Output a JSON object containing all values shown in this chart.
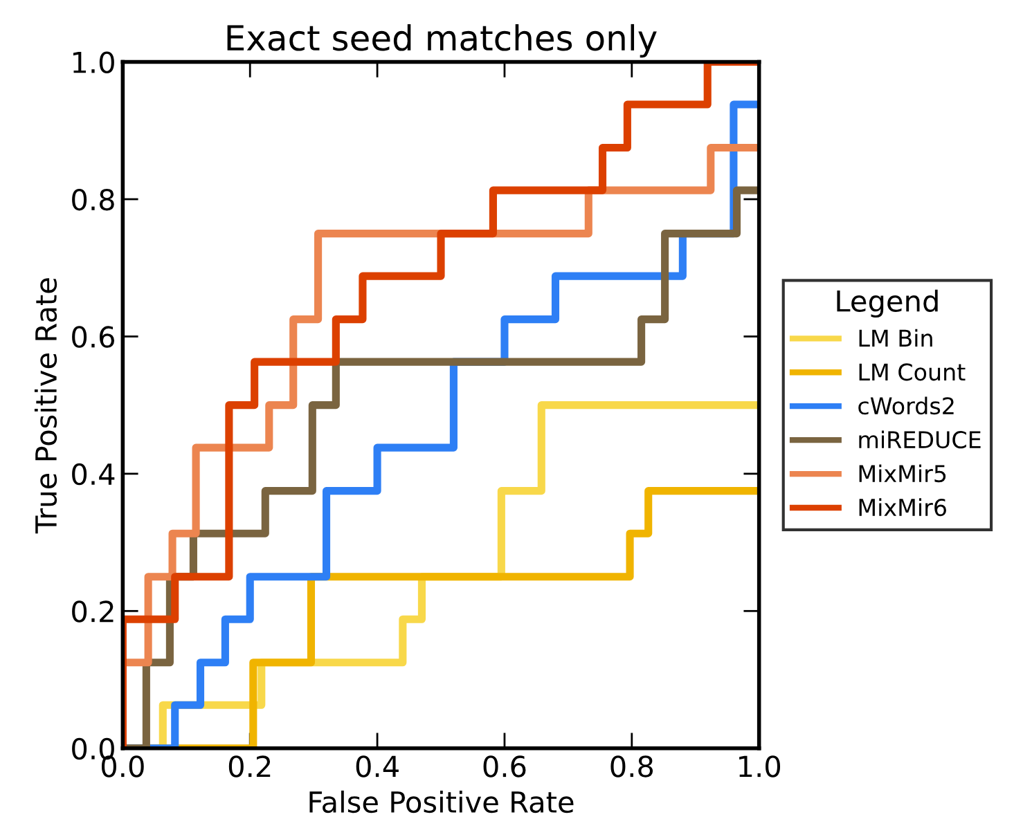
{
  "chart_data": {
    "type": "step",
    "title": "Exact seed matches only",
    "xlabel": "False Positive Rate",
    "ylabel": "True Positive Rate",
    "legend_title": "Legend",
    "legend": "right",
    "grid": false,
    "line_style": "solid",
    "marker": "none",
    "xlim": [
      0,
      1
    ],
    "ylim": [
      0,
      1
    ],
    "xticks": [
      {
        "value": 0,
        "label": "0.0"
      },
      {
        "value": 0.2,
        "label": "0.2"
      },
      {
        "value": 0.4,
        "label": "0.4"
      },
      {
        "value": 0.6,
        "label": "0.6"
      },
      {
        "value": 0.8,
        "label": "0.8"
      },
      {
        "value": 1,
        "label": "1.0"
      }
    ],
    "yticks": [
      {
        "value": 0,
        "label": "0.0"
      },
      {
        "value": 0.2,
        "label": "0.2"
      },
      {
        "value": 0.4,
        "label": "0.4"
      },
      {
        "value": 0.6,
        "label": "0.6"
      },
      {
        "value": 0.8,
        "label": "0.8"
      },
      {
        "value": 1,
        "label": "1.0"
      }
    ],
    "series": [
      {
        "name": "LM Bin",
        "color": "#f8d84a",
        "x": [
          0,
          0.063,
          0.218,
          0.44,
          0.47,
          0.595,
          0.658,
          1
        ],
        "values": [
          0,
          0.063,
          0.125,
          0.188,
          0.25,
          0.375,
          0.5,
          0.5
        ]
      },
      {
        "name": "LM Count",
        "color": "#f0b400",
        "x": [
          0,
          0.205,
          0.296,
          0.797,
          0.826,
          1
        ],
        "values": [
          0,
          0.125,
          0.25,
          0.313,
          0.375,
          0.375
        ]
      },
      {
        "name": "cWords2",
        "color": "#2e7ff5",
        "x": [
          0,
          0.082,
          0.122,
          0.161,
          0.2,
          0.32,
          0.4,
          0.52,
          0.6,
          0.68,
          0.88,
          0.96,
          1
        ],
        "values": [
          0,
          0.063,
          0.125,
          0.188,
          0.25,
          0.375,
          0.438,
          0.563,
          0.625,
          0.688,
          0.75,
          0.938,
          0.938
        ]
      },
      {
        "name": "miREDUCE",
        "color": "#7a6440",
        "x": [
          0,
          0.037,
          0.074,
          0.111,
          0.224,
          0.298,
          0.335,
          0.815,
          0.852,
          0.965,
          1
        ],
        "values": [
          0,
          0.125,
          0.25,
          0.313,
          0.375,
          0.5,
          0.563,
          0.625,
          0.75,
          0.813,
          0.813
        ]
      },
      {
        "name": "MixMir5",
        "color": "#ec8550",
        "x": [
          0,
          0,
          0.04,
          0.078,
          0.115,
          0.23,
          0.268,
          0.307,
          0.732,
          0.924,
          1
        ],
        "values": [
          0,
          0.125,
          0.25,
          0.313,
          0.438,
          0.5,
          0.625,
          0.75,
          0.813,
          0.875,
          0.875
        ]
      },
      {
        "name": "MixMir6",
        "color": "#dc4000",
        "x": [
          0,
          0,
          0.082,
          0.167,
          0.207,
          0.335,
          0.377,
          0.5,
          0.582,
          0.754,
          0.793,
          0.919,
          1
        ],
        "values": [
          0,
          0.188,
          0.25,
          0.5,
          0.563,
          0.625,
          0.688,
          0.75,
          0.813,
          0.875,
          0.938,
          1,
          1
        ]
      }
    ]
  }
}
